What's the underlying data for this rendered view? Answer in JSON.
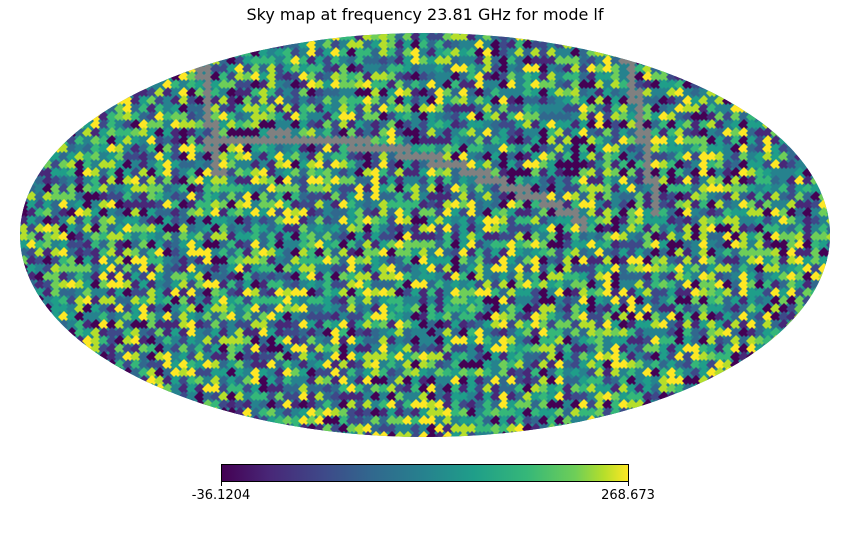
{
  "title": "Sky map at frequency 23.81 GHz for mode lf",
  "map": {
    "projection": "Mollweide",
    "colormap": "viridis",
    "colormap_stops": [
      "#440154",
      "#482878",
      "#3e4989",
      "#31688e",
      "#26828e",
      "#1f9e89",
      "#35b779",
      "#6ece58",
      "#b5de2b",
      "#fde725"
    ],
    "masked_color": "#808080"
  },
  "colorbar": {
    "min_label": "-36.1204",
    "max_label": "268.673"
  }
}
